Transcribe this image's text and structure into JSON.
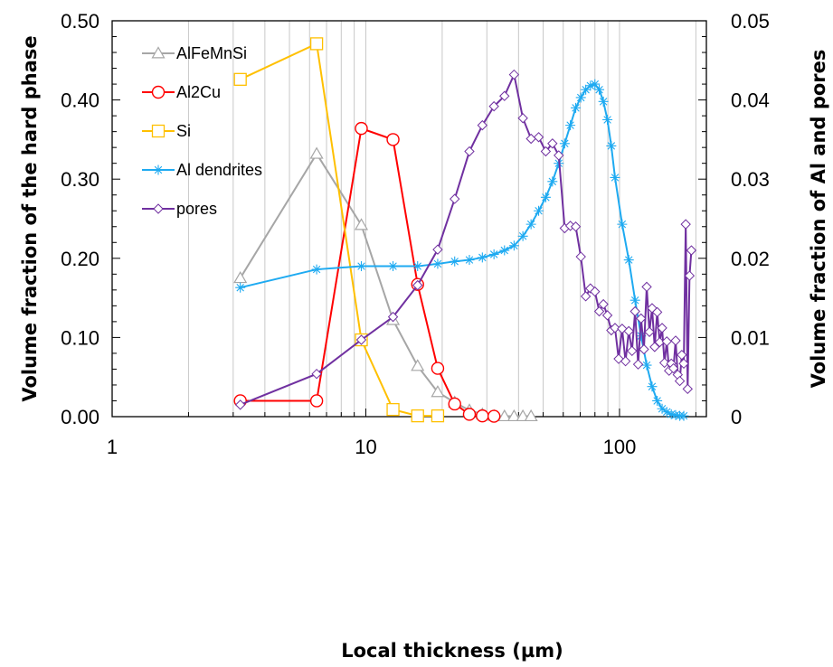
{
  "chart_data": {
    "type": "line",
    "title": "",
    "xlabel": "Local thickness (µm)",
    "ylabel_left": "Volume fraction of the hard phase",
    "ylabel_right": "Volume fraction of Al and pores",
    "x_scale": "log",
    "xlim": [
      1,
      220
    ],
    "ylim_left": [
      0,
      0.5
    ],
    "ylim_right": [
      0,
      0.05
    ],
    "x_ticks": [
      1,
      10,
      100
    ],
    "x_tick_labels": [
      "1",
      "10",
      "100"
    ],
    "y_left_ticks": [
      0,
      0.1,
      0.2,
      0.3,
      0.4,
      0.5
    ],
    "y_left_tick_labels": [
      "0.00",
      "0.10",
      "0.20",
      "0.30",
      "0.40",
      "0.50"
    ],
    "y_right_ticks": [
      0,
      0.01,
      0.02,
      0.03,
      0.04,
      0.05
    ],
    "y_right_tick_labels": [
      "0",
      "0.01",
      "0.02",
      "0.03",
      "0.04",
      "0.05"
    ],
    "grid": "vertical minor lines on log x axis",
    "legend_position": "upper-left",
    "series": [
      {
        "name": "AlFeMnSi",
        "axis": "left",
        "color": "#a6a6a6",
        "marker": "triangle",
        "x": [
          3.2,
          6.4,
          9.6,
          12.8,
          16.0,
          19.2,
          22.4,
          25.6,
          28.8,
          32.0,
          35.2,
          38.4,
          41.6,
          44.8
        ],
        "y": [
          0.175,
          0.332,
          0.242,
          0.122,
          0.064,
          0.031,
          0.018,
          0.008,
          0.003,
          0.001,
          0.0005,
          0.0005,
          0.0005,
          0.0005
        ]
      },
      {
        "name": "Al2Cu",
        "axis": "left",
        "color": "#ff0000",
        "marker": "circle",
        "x": [
          3.2,
          6.4,
          9.6,
          12.8,
          16.0,
          19.2,
          22.4,
          25.6,
          28.8,
          32.0
        ],
        "y": [
          0.02,
          0.02,
          0.364,
          0.35,
          0.167,
          0.061,
          0.016,
          0.003,
          0.001,
          0.0005
        ]
      },
      {
        "name": "Si",
        "axis": "left",
        "color": "#ffc000",
        "marker": "square",
        "x": [
          3.2,
          6.4,
          9.6,
          12.8,
          16.0,
          19.2
        ],
        "y": [
          0.426,
          0.471,
          0.097,
          0.009,
          0.001,
          0.001
        ]
      },
      {
        "name": "Al dendrites",
        "axis": "right",
        "color": "#1eaaf1",
        "marker": "asterisk",
        "x": [
          3.2,
          6.4,
          9.6,
          12.8,
          16.0,
          19.2,
          22.4,
          25.6,
          28.8,
          32.0,
          35.2,
          38.4,
          41.6,
          44.8,
          48.0,
          51.2,
          54.4,
          57.6,
          60.8,
          64.0,
          67.2,
          70.4,
          73.6,
          76.8,
          80.0,
          83.2,
          86.4,
          89.6,
          92.8,
          96.0,
          102.4,
          108.8,
          115.2,
          121.6,
          128.0,
          134.4,
          140.8,
          147.2,
          153.6,
          160.0,
          166.4,
          172.8,
          179.2
        ],
        "y": [
          0.0163,
          0.0186,
          0.019,
          0.019,
          0.019,
          0.0193,
          0.0196,
          0.0198,
          0.0201,
          0.0205,
          0.021,
          0.0216,
          0.0228,
          0.0243,
          0.026,
          0.0277,
          0.0297,
          0.032,
          0.0345,
          0.0368,
          0.039,
          0.0403,
          0.0413,
          0.0418,
          0.042,
          0.0413,
          0.0398,
          0.0375,
          0.0342,
          0.0302,
          0.0243,
          0.0198,
          0.0147,
          0.0102,
          0.0065,
          0.0038,
          0.002,
          0.001,
          0.0006,
          0.0003,
          0.0002,
          0.0001,
          0.0001
        ]
      },
      {
        "name": "pores",
        "axis": "right",
        "color": "#7030a0",
        "marker": "diamond",
        "x": [
          3.2,
          6.4,
          9.6,
          12.8,
          16.0,
          19.2,
          22.4,
          25.6,
          28.8,
          32.0,
          35.2,
          38.4,
          41.6,
          44.8,
          48.0,
          51.2,
          54.4,
          57.6,
          60.8,
          64.0,
          67.2,
          70.4,
          73.6,
          76.8,
          80.0,
          83.2,
          86.4,
          89.6,
          92.8,
          96.0,
          99.2,
          102.4,
          105.6,
          108.8,
          112.0,
          115.2,
          118.4,
          121.6,
          124.8,
          128.0,
          131.2,
          134.4,
          137.6,
          140.8,
          144.0,
          147.2,
          150.4,
          153.6,
          156.8,
          160.0,
          163.2,
          166.4,
          169.6,
          172.8,
          176.0,
          179.2,
          182.4,
          185.6,
          188.8,
          192.0
        ],
        "y": [
          0.0015,
          0.0054,
          0.0097,
          0.0126,
          0.0166,
          0.0211,
          0.0275,
          0.0335,
          0.0368,
          0.0392,
          0.0405,
          0.0432,
          0.0377,
          0.0351,
          0.0353,
          0.0335,
          0.0345,
          0.033,
          0.0238,
          0.0241,
          0.024,
          0.0202,
          0.0152,
          0.0162,
          0.0158,
          0.0133,
          0.0142,
          0.0128,
          0.0109,
          0.0112,
          0.0073,
          0.0111,
          0.007,
          0.0108,
          0.0083,
          0.0133,
          0.0066,
          0.0124,
          0.0085,
          0.0164,
          0.0107,
          0.0137,
          0.0088,
          0.0132,
          0.0094,
          0.0112,
          0.0068,
          0.0095,
          0.0058,
          0.0067,
          0.0061,
          0.0096,
          0.0053,
          0.0045,
          0.0078,
          0.0067,
          0.0243,
          0.0035,
          0.0178,
          0.021
        ]
      }
    ]
  }
}
